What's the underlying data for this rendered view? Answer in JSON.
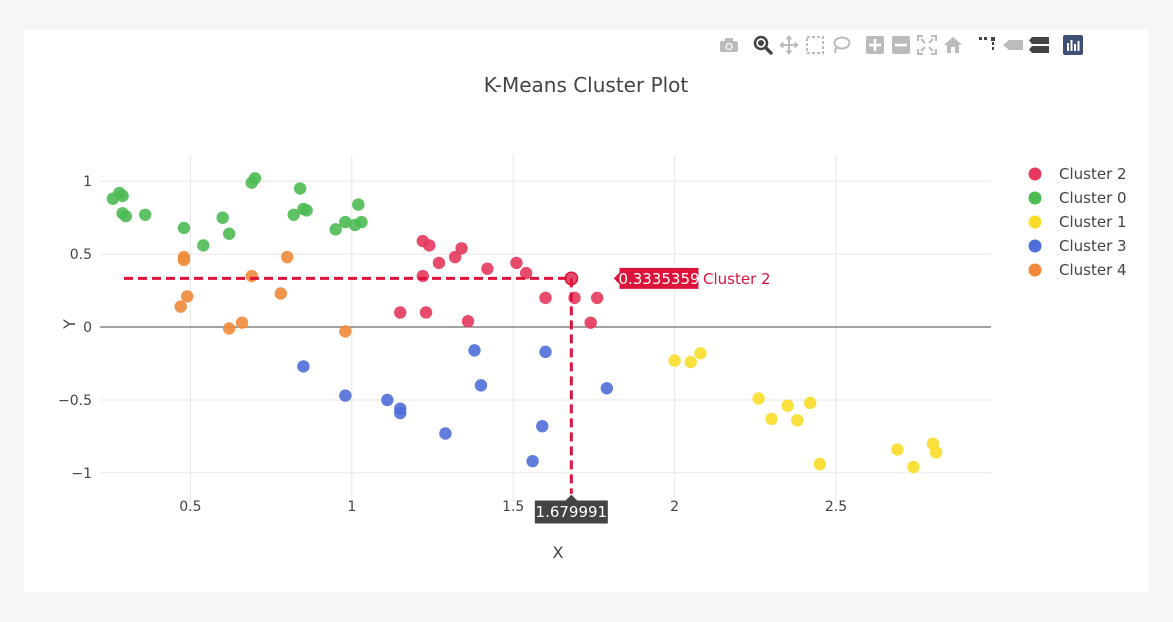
{
  "modebar": {
    "icons": [
      "camera-icon",
      "zoom-icon",
      "pan-icon",
      "box-select-icon",
      "lasso-icon",
      "zoom-in-icon",
      "zoom-out-icon",
      "autoscale-icon",
      "reset-axes-icon",
      "spike-lines-icon",
      "hover-closest-icon",
      "hover-compare-icon",
      "plotly-logo-icon"
    ],
    "color": "#bbbbbb",
    "active_color": "#444444"
  },
  "hover": {
    "x_label": "1.679991",
    "y_label": "0.3335359",
    "trace_name": "Cluster 2",
    "x": 1.679991,
    "y": 0.3335359,
    "color": "#dc143c"
  },
  "chart_data": {
    "type": "scatter",
    "title": "K-Means Cluster Plot",
    "xlabel": "X",
    "ylabel": "Y",
    "xlim": [
      0.22,
      2.98
    ],
    "ylim": [
      -1.2,
      1.18
    ],
    "xticks": [
      0.5,
      1,
      1.5,
      2,
      2.5
    ],
    "xtick_labels": [
      "0.5",
      "1",
      "1.5",
      "2",
      "2.5"
    ],
    "yticks": [
      -1,
      -0.5,
      0,
      0.5,
      1
    ],
    "ytick_labels": [
      "−1",
      "−0.5",
      "0",
      "0.5",
      "1"
    ],
    "grid": true,
    "legend_position": "top-right",
    "series": [
      {
        "name": "Cluster 2",
        "color": "#e6395c",
        "x": [
          1.22,
          1.24,
          1.27,
          1.32,
          1.34,
          1.42,
          1.51,
          1.54,
          1.22,
          1.6,
          1.68,
          1.69,
          1.76,
          1.15,
          1.23,
          1.36,
          1.74
        ],
        "y": [
          0.59,
          0.56,
          0.44,
          0.48,
          0.54,
          0.4,
          0.44,
          0.37,
          0.35,
          0.2,
          0.33,
          0.2,
          0.2,
          0.1,
          0.1,
          0.04,
          0.03
        ]
      },
      {
        "name": "Cluster 0",
        "color": "#4dbb54",
        "x": [
          0.26,
          0.28,
          0.29,
          0.29,
          0.3,
          0.36,
          0.48,
          0.54,
          0.6,
          0.62,
          0.69,
          0.7,
          0.82,
          0.84,
          0.85,
          0.86,
          0.95,
          0.98,
          1.01,
          1.02,
          1.03
        ],
        "y": [
          0.88,
          0.92,
          0.9,
          0.78,
          0.76,
          0.77,
          0.68,
          0.56,
          0.75,
          0.64,
          0.99,
          1.02,
          0.77,
          0.95,
          0.81,
          0.8,
          0.67,
          0.72,
          0.7,
          0.84,
          0.72
        ]
      },
      {
        "name": "Cluster 1",
        "color": "#fadd28",
        "x": [
          2.0,
          2.05,
          2.08,
          2.26,
          2.3,
          2.35,
          2.38,
          2.42,
          2.45,
          2.69,
          2.74,
          2.8,
          2.81
        ],
        "y": [
          -0.23,
          -0.24,
          -0.18,
          -0.49,
          -0.63,
          -0.54,
          -0.64,
          -0.52,
          -0.94,
          -0.84,
          -0.96,
          -0.8,
          -0.86
        ]
      },
      {
        "name": "Cluster 3",
        "color": "#4f6ed9",
        "x": [
          0.85,
          0.98,
          1.11,
          1.15,
          1.15,
          1.29,
          1.38,
          1.4,
          1.56,
          1.59,
          1.6,
          1.79
        ],
        "y": [
          -0.27,
          -0.47,
          -0.5,
          -0.56,
          -0.59,
          -0.73,
          -0.16,
          -0.4,
          -0.92,
          -0.68,
          -0.17,
          -0.42
        ]
      },
      {
        "name": "Cluster 4",
        "color": "#f08a3a",
        "x": [
          0.47,
          0.48,
          0.48,
          0.49,
          0.62,
          0.66,
          0.69,
          0.78,
          0.8,
          0.98
        ],
        "y": [
          0.14,
          0.46,
          0.48,
          0.21,
          -0.01,
          0.03,
          0.35,
          0.23,
          0.48,
          -0.03
        ]
      }
    ]
  }
}
